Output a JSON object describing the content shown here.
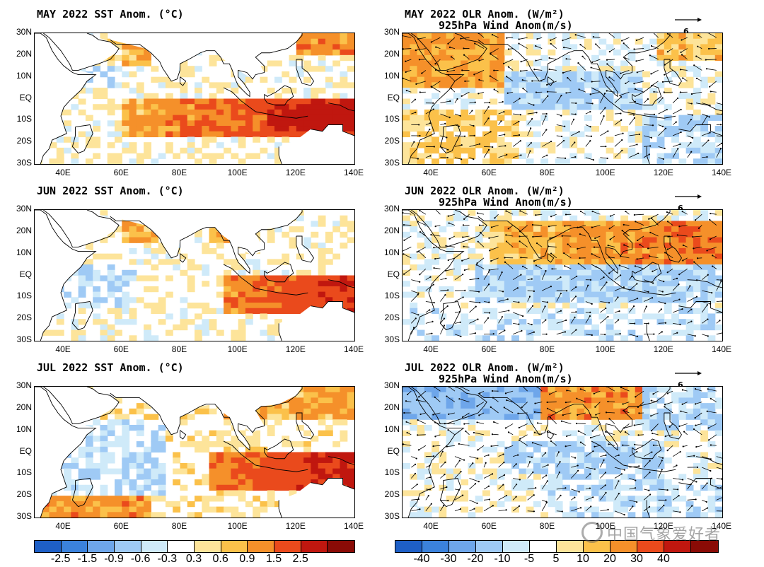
{
  "chart_data": [
    {
      "id": "sst-may",
      "type": "heatmap",
      "title": "MAY 2022 SST Anom. (°C)",
      "yticks": [
        "30N",
        "20N",
        "10N",
        "EQ",
        "10S",
        "20S",
        "30S"
      ],
      "xticks": [
        "40E",
        "60E",
        "80E",
        "100E",
        "120E",
        "140E"
      ],
      "xlim": [
        30,
        140
      ],
      "ylim": [
        -30,
        30
      ]
    },
    {
      "id": "olr-may",
      "type": "heatmap",
      "title": "MAY 2022 OLR Anom. (W/m²)",
      "subtitle": "925hPa Wind Anom(m/s)",
      "ref_vector": "6",
      "yticks": [
        "30N",
        "20N",
        "10N",
        "EQ",
        "10S",
        "20S",
        "30S"
      ],
      "xticks": [
        "40E",
        "60E",
        "80E",
        "100E",
        "120E",
        "140E"
      ],
      "xlim": [
        30,
        140
      ],
      "ylim": [
        -30,
        30
      ]
    },
    {
      "id": "sst-jun",
      "type": "heatmap",
      "title": "JUN 2022 SST Anom. (°C)",
      "yticks": [
        "30N",
        "20N",
        "10N",
        "EQ",
        "10S",
        "20S",
        "30S"
      ],
      "xticks": [
        "40E",
        "60E",
        "80E",
        "100E",
        "120E",
        "140E"
      ],
      "xlim": [
        30,
        140
      ],
      "ylim": [
        -30,
        30
      ]
    },
    {
      "id": "olr-jun",
      "type": "heatmap",
      "title": "JUN 2022 OLR Anom. (W/m²)",
      "subtitle": "925hPa Wind Anom(m/s)",
      "ref_vector": "6",
      "yticks": [
        "30N",
        "20N",
        "10N",
        "EQ",
        "10S",
        "20S",
        "30S"
      ],
      "xticks": [
        "40E",
        "60E",
        "80E",
        "100E",
        "120E",
        "140E"
      ],
      "xlim": [
        30,
        140
      ],
      "ylim": [
        -30,
        30
      ]
    },
    {
      "id": "sst-jul",
      "type": "heatmap",
      "title": "JUL 2022 SST Anom. (°C)",
      "yticks": [
        "30N",
        "20N",
        "10N",
        "EQ",
        "10S",
        "20S",
        "30S"
      ],
      "xticks": [
        "40E",
        "60E",
        "80E",
        "100E",
        "120E",
        "140E"
      ],
      "xlim": [
        30,
        140
      ],
      "ylim": [
        -30,
        30
      ]
    },
    {
      "id": "olr-jul",
      "type": "heatmap",
      "title": "JUL 2022 OLR Anom. (W/m²)",
      "subtitle": "925hPa Wind Anom(m/s)",
      "ref_vector": "6",
      "yticks": [
        "30N",
        "20N",
        "10N",
        "EQ",
        "10S",
        "20S",
        "30S"
      ],
      "xticks": [
        "40E",
        "60E",
        "80E",
        "100E",
        "120E",
        "140E"
      ],
      "xlim": [
        30,
        140
      ],
      "ylim": [
        -30,
        30
      ]
    }
  ],
  "colorbars": {
    "sst": {
      "labels": [
        "-2.5",
        "-1.5",
        "-0.9",
        "-0.6",
        "-0.3",
        "0.3",
        "0.6",
        "0.9",
        "1.5",
        "2.5"
      ],
      "colors": [
        "#1e5fc6",
        "#3b82dc",
        "#6ea6ea",
        "#9fcaf5",
        "#cfeaf9",
        "#ffffff",
        "#fde49a",
        "#fbc14a",
        "#f5902a",
        "#ea4a1c",
        "#c0170f",
        "#8a0b06"
      ]
    },
    "olr": {
      "labels": [
        "-40",
        "-30",
        "-20",
        "-10",
        "-5",
        "5",
        "10",
        "20",
        "30",
        "40"
      ],
      "colors": [
        "#1e5fc6",
        "#3b82dc",
        "#6ea6ea",
        "#9fcaf5",
        "#cfeaf9",
        "#ffffff",
        "#fde49a",
        "#fbc14a",
        "#f5902a",
        "#ea4a1c",
        "#c0170f",
        "#8a0b06"
      ]
    }
  },
  "watermark": {
    "text": "中国气象爱好者"
  }
}
